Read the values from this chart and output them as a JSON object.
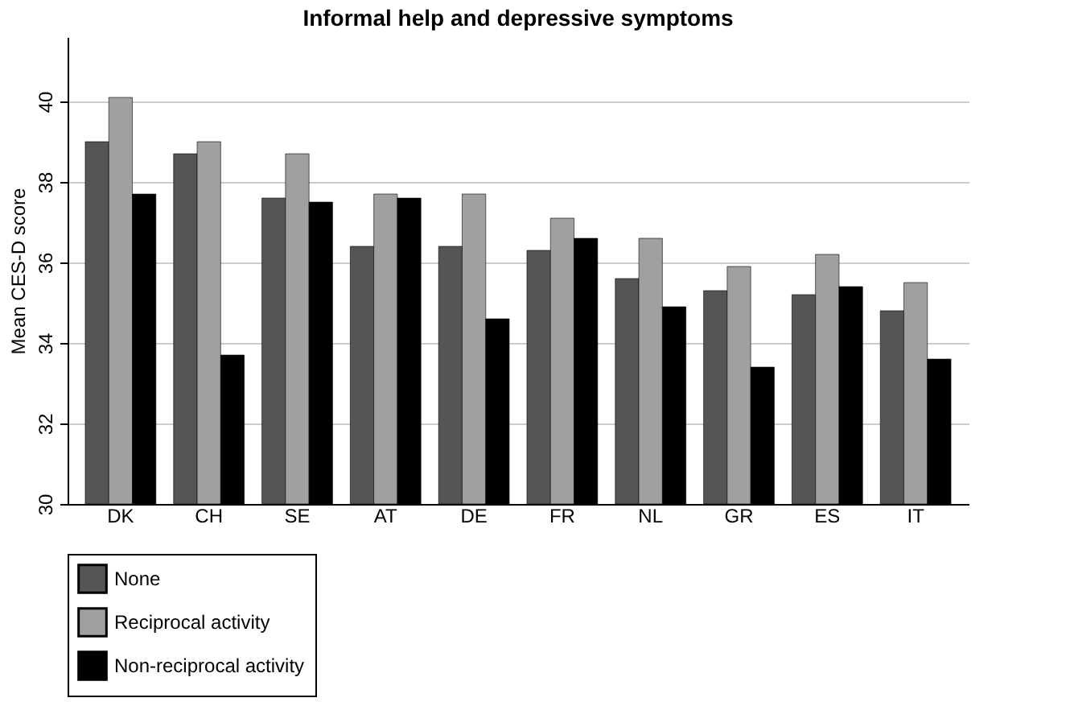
{
  "chart_data": {
    "type": "bar",
    "title": "Informal help and depressive symptoms",
    "ylabel": "Mean CES-D score",
    "categories": [
      "DK",
      "CH",
      "SE",
      "AT",
      "DE",
      "FR",
      "NL",
      "GR",
      "ES",
      "IT"
    ],
    "series": [
      {
        "name": "None",
        "color": "#555555",
        "values": [
          39.0,
          38.7,
          37.6,
          36.4,
          36.4,
          36.3,
          35.6,
          35.3,
          35.2,
          34.8
        ]
      },
      {
        "name": "Reciprocal activity",
        "color": "#a0a0a0",
        "values": [
          40.1,
          39.0,
          38.7,
          37.7,
          37.7,
          37.1,
          36.6,
          35.9,
          36.2,
          35.5
        ]
      },
      {
        "name": "Non-reciprocal activity",
        "color": "#000000",
        "values": [
          37.7,
          33.7,
          37.5,
          37.6,
          34.6,
          36.6,
          34.9,
          33.4,
          35.4,
          33.6
        ]
      }
    ],
    "ylim": [
      30,
      41.6
    ],
    "yticks": [
      30,
      32,
      34,
      36,
      38,
      40
    ],
    "grid": "y",
    "legend": "bottom"
  }
}
